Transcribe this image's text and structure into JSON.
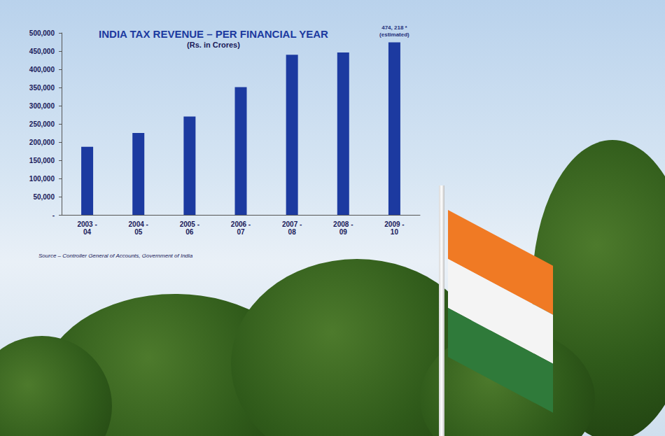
{
  "chart_data": {
    "type": "bar",
    "title": "INDIA TAX REVENUE – PER FINANCIAL YEAR",
    "subtitle": "(Rs. in Crores)",
    "source": "Source – Controller General of Accounts, Government of India",
    "categories": [
      "2003 - 04",
      "2004 - 05",
      "2005 - 06",
      "2006 - 07",
      "2007 - 08",
      "2008 - 09",
      "2009 - 10"
    ],
    "values": [
      187000,
      225000,
      270000,
      351000,
      440000,
      446000,
      474218
    ],
    "color": "#1c3aa0",
    "annotations": [
      {
        "category": "2009 - 10",
        "text": "474, 218 *\n(estimated)"
      }
    ],
    "ylim": [
      0,
      500000
    ],
    "yticks": [
      {
        "value": 0,
        "label": "-"
      },
      {
        "value": 50000,
        "label": "50,000"
      },
      {
        "value": 100000,
        "label": "100,000"
      },
      {
        "value": 150000,
        "label": "150,000"
      },
      {
        "value": 200000,
        "label": "200,000"
      },
      {
        "value": 250000,
        "label": "250,000"
      },
      {
        "value": 300000,
        "label": "300,000"
      },
      {
        "value": 350000,
        "label": "350,000"
      },
      {
        "value": 400000,
        "label": "400,000"
      },
      {
        "value": 450000,
        "label": "450,000"
      },
      {
        "value": 500000,
        "label": "500,000"
      }
    ],
    "grid": false
  }
}
